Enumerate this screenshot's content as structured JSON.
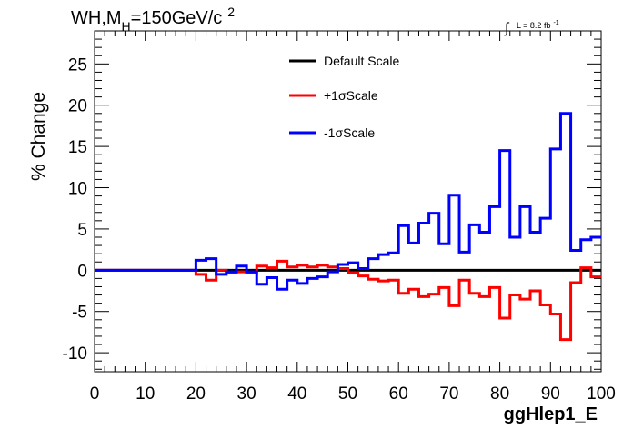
{
  "title_parts": {
    "a": "WH,M",
    "sub": "H",
    "b": "=150GeV/c",
    "sup": "2"
  },
  "lumi": {
    "main": "L = 8.2 fb",
    "sup": "-1"
  },
  "colors": {
    "default": "#000000",
    "plus": "#ff0000",
    "minus": "#0000ff"
  },
  "chart_data": {
    "type": "line",
    "title": "WH,M_H=150GeV/c^2",
    "xlabel": "ggHlep1_E",
    "ylabel": "% Change",
    "xlim": [
      0,
      100
    ],
    "ylim": [
      -12.3,
      29
    ],
    "x_ticks": [
      0,
      10,
      20,
      30,
      40,
      50,
      60,
      70,
      80,
      90,
      100
    ],
    "y_ticks": [
      -10,
      -5,
      0,
      5,
      10,
      15,
      20,
      25
    ],
    "grid": false,
    "legend_position": "top-center",
    "bin_edges": [
      0,
      2,
      4,
      6,
      8,
      10,
      12,
      14,
      16,
      18,
      20,
      22,
      24,
      26,
      28,
      30,
      32,
      34,
      36,
      38,
      40,
      42,
      44,
      46,
      48,
      50,
      52,
      54,
      56,
      58,
      60,
      62,
      64,
      66,
      68,
      70,
      72,
      74,
      76,
      78,
      80,
      82,
      84,
      86,
      88,
      90,
      92,
      94,
      96,
      98,
      100
    ],
    "series": [
      {
        "name": "Default Scale",
        "color": "#000000",
        "values": [
          0,
          0,
          0,
          0,
          0,
          0,
          0,
          0,
          0,
          0,
          0,
          0,
          0,
          0,
          0,
          0,
          0,
          0,
          0,
          0,
          0,
          0,
          0,
          0,
          0,
          0,
          0,
          0,
          0,
          0,
          0,
          0,
          0,
          0,
          0,
          0,
          0,
          0,
          0,
          0,
          0,
          0,
          0,
          0,
          0,
          0,
          0,
          0,
          0,
          0
        ]
      },
      {
        "name": "+1σScale",
        "color": "#ff0000",
        "values": [
          0,
          0,
          0,
          0,
          0,
          0,
          0,
          0,
          0,
          0,
          -0.5,
          -1.2,
          0,
          -0.3,
          -0.2,
          -0.3,
          0.5,
          0.3,
          1.1,
          0.4,
          0.6,
          0.4,
          0.6,
          0.4,
          0.2,
          -0.3,
          -0.7,
          -1.1,
          -1.3,
          -1.2,
          -2.8,
          -2.3,
          -3.2,
          -2.9,
          -2.1,
          -4.3,
          -1.2,
          -2.8,
          -3.2,
          -2.1,
          -5.8,
          -3.0,
          -3.5,
          -2.5,
          -4.2,
          -5.3,
          -8.4,
          -1.5,
          0.3,
          -0.8
        ]
      },
      {
        "name": "-1σScale",
        "color": "#0000ff",
        "values": [
          0,
          0,
          0,
          0,
          0,
          0,
          0,
          0,
          0,
          0,
          1.2,
          1.4,
          -0.5,
          -0.2,
          0.5,
          -0.2,
          -1.7,
          -0.9,
          -2.3,
          -1.2,
          -1.6,
          -1.0,
          -0.8,
          -0.2,
          0.7,
          0.9,
          0.2,
          1.4,
          1.9,
          2.1,
          5.4,
          3.3,
          5.7,
          6.9,
          3.2,
          9.1,
          2.2,
          5.5,
          4.6,
          7.7,
          14.5,
          4.0,
          7.7,
          4.6,
          6.3,
          14.7,
          19.0,
          2.4,
          3.7,
          4.0
        ]
      }
    ]
  }
}
